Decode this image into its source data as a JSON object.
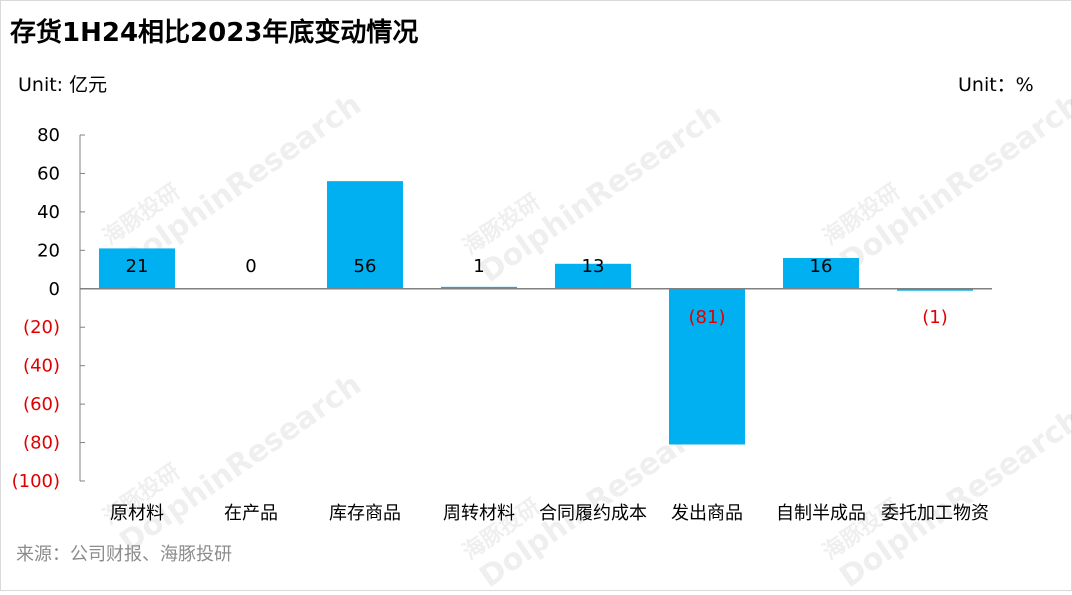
{
  "title": "存货1H24相比2023年底变动情况",
  "unit_left": "Unit: 亿元",
  "unit_right": "Unit：%",
  "source": "来源：公司财报、海豚投研",
  "watermark": {
    "cn": "海豚投研",
    "en": "DolphinResearch"
  },
  "colors": {
    "bar": "#00b0f0",
    "negative_label": "#e00000",
    "axis": "#808080"
  },
  "chart_data": {
    "type": "bar",
    "categories": [
      "原材料",
      "在产品",
      "库存商品",
      "周转材料",
      "合同履约成本",
      "发出商品",
      "自制半成品",
      "委托加工物资"
    ],
    "values": [
      21,
      0,
      56,
      1,
      13,
      -81,
      16,
      -1
    ],
    "data_labels": [
      "21",
      "0",
      "56",
      "1",
      "13",
      "(81)",
      "16",
      "(1)"
    ],
    "ylim": [
      -100,
      80
    ],
    "yticks": [
      80,
      60,
      40,
      20,
      0,
      -20,
      -40,
      -60,
      -80,
      -100
    ],
    "ytick_labels": [
      "80",
      "60",
      "40",
      "20",
      "0",
      "(20)",
      "(40)",
      "(60)",
      "(80)",
      "(100)"
    ],
    "title": "存货1H24相比2023年底变动情况",
    "ylabel": "Unit: 亿元",
    "xlabel": ""
  }
}
